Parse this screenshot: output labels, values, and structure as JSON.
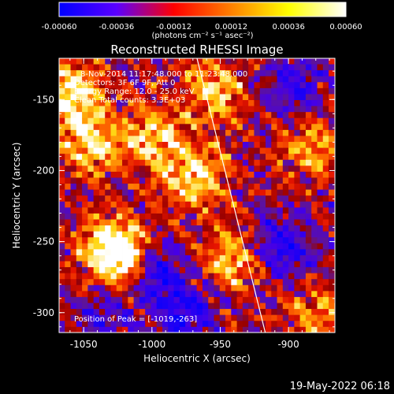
{
  "chart_data": {
    "type": "heatmap",
    "title": "Reconstructed RHESSI Image",
    "xlabel": "Heliocentric X (arcsec)",
    "ylabel": "Heliocentric Y (arcsec)",
    "xlim": [
      -1068,
      -866
    ],
    "ylim": [
      -314,
      -121
    ],
    "x_ticks": [
      -1050,
      -1000,
      -950,
      -900
    ],
    "x_tick_labels": [
      "-1050",
      "-1000",
      "-950",
      "-900"
    ],
    "y_ticks": [
      -150,
      -200,
      -250,
      -300
    ],
    "y_tick_labels": [
      "-150",
      "-200",
      "-250",
      "-300"
    ],
    "colorbar": {
      "range": [
        -0.0006,
        0.0006
      ],
      "tick_labels": [
        "-0.00060",
        "-0.00036",
        "-0.00012",
        "0.00012",
        "0.00036",
        "0.00060"
      ],
      "unit_label": "(photons cm⁻² s⁻¹ asec⁻²)",
      "colors": [
        "#0000ff",
        "#5a00ff",
        "#ff0000",
        "#ff8000",
        "#ffff00",
        "#ffffff"
      ]
    },
    "annotations": [
      "8-Nov-2014 11:17:48.000 to 11:23:48.000",
      "Detectors: 3F 6F 9F, Att 0",
      "Energy Range: 12.0 - 25.0 keV",
      "Clean    Total counts: 3.3E+03"
    ],
    "peak_label": "Position of Peak = [-1019,-263]",
    "peak": [
      -1019,
      -263
    ],
    "limb_line": [
      [
        -967,
        -121
      ],
      [
        -917,
        -314
      ]
    ],
    "bright_regions": [
      {
        "x": -1060,
        "y": -145,
        "level": 1.0
      },
      {
        "x": -1045,
        "y": -180,
        "level": 0.85
      },
      {
        "x": -1030,
        "y": -255,
        "level": 0.95
      },
      {
        "x": -1019,
        "y": -263,
        "level": 1.0
      },
      {
        "x": -1000,
        "y": -175,
        "level": 0.75
      },
      {
        "x": -970,
        "y": -205,
        "level": 0.95
      },
      {
        "x": -955,
        "y": -145,
        "level": 0.8
      },
      {
        "x": -940,
        "y": -265,
        "level": 0.8
      },
      {
        "x": -880,
        "y": -185,
        "level": 0.65
      },
      {
        "x": -880,
        "y": -300,
        "level": 0.6
      }
    ],
    "dark_regions": [
      {
        "x": -1000,
        "y": -270,
        "level": 1.0
      },
      {
        "x": -975,
        "y": -300,
        "level": 0.8
      },
      {
        "x": -905,
        "y": -255,
        "level": 0.85
      },
      {
        "x": -895,
        "y": -140,
        "level": 0.6
      },
      {
        "x": -1035,
        "y": -300,
        "level": 0.5
      }
    ]
  },
  "footer": {
    "date_stamp": "19-May-2022 06:18"
  }
}
